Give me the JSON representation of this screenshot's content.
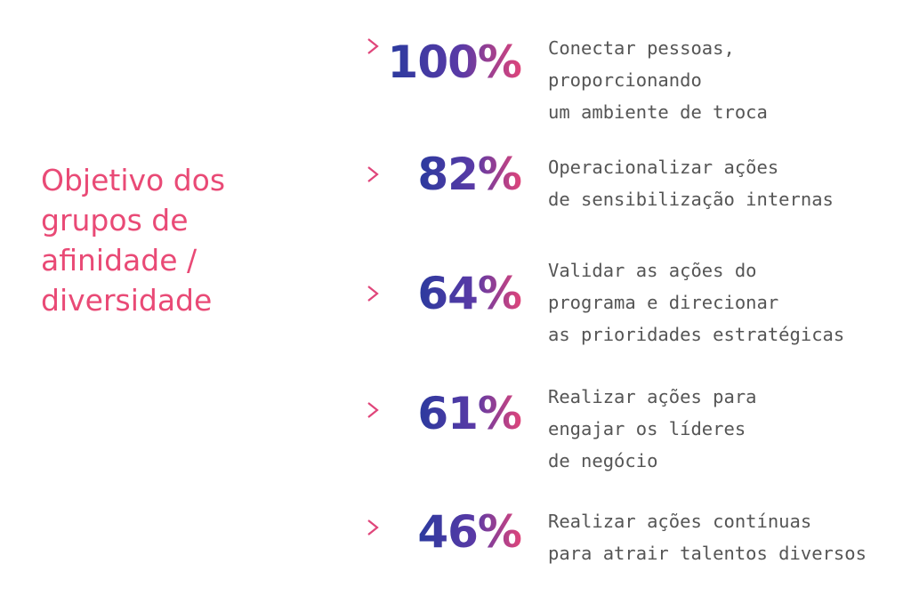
{
  "title_lines": [
    "Objetivo dos",
    "grupos de",
    "afinidade /",
    "diversidade"
  ],
  "items": [
    {
      "value": "100%",
      "lines": [
        "Conectar pessoas,",
        "proporcionando",
        "um ambiente de troca"
      ]
    },
    {
      "value": "82%",
      "lines": [
        "Operacionalizar ações",
        "de sensibilização internas"
      ]
    },
    {
      "value": "64%",
      "lines": [
        "Validar as ações do",
        "programa e direcionar",
        "as prioridades estratégicas"
      ]
    },
    {
      "value": "61%",
      "lines": [
        "Realizar ações para",
        "engajar os líderes",
        "de negócio"
      ]
    },
    {
      "value": "46%",
      "lines": [
        "Realizar ações contínuas",
        "para atrair talentos diversos"
      ]
    }
  ],
  "colors": {
    "title": "#e94a76",
    "gradient_start": "#2a3a9e",
    "gradient_end": "#e0457a",
    "text": "#555555"
  }
}
